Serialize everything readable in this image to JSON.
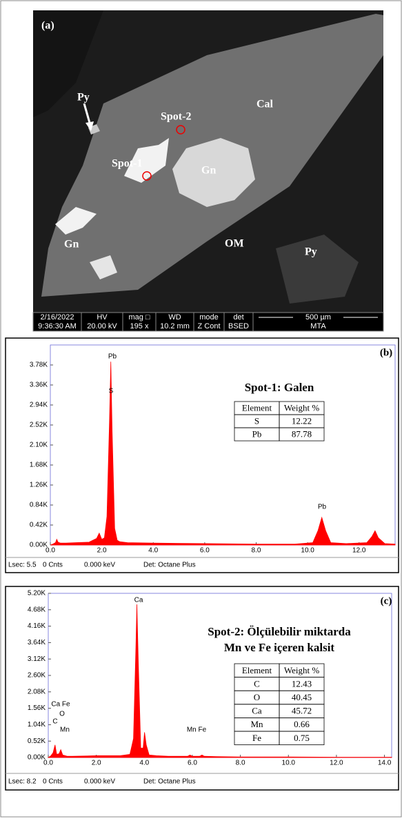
{
  "sem_image": {
    "label": "(a)",
    "annotations": [
      "Py",
      "Spot-2",
      "Cal",
      "Spot-1",
      "Gn",
      "Gn",
      "OM",
      "Py"
    ],
    "info_bar": {
      "headers": [
        "2/16/2022",
        "HV",
        "mag □",
        "WD",
        "mode",
        "det",
        "500 µm"
      ],
      "values": [
        "9:36:30 AM",
        "20.00 kV",
        "195 x",
        "10.2 mm",
        "Z Cont",
        "BSED",
        "MTA"
      ]
    }
  },
  "chart_data": [
    {
      "type": "area",
      "panel_label": "(b)",
      "title": [
        "Spot-1: Galen"
      ],
      "color": "#ff0000",
      "x": [
        0,
        0.1,
        0.2,
        0.25,
        0.3,
        0.4,
        0.6,
        1.0,
        1.5,
        1.8,
        1.9,
        2.0,
        2.1,
        2.2,
        2.3,
        2.35,
        2.4,
        2.5,
        2.6,
        2.7,
        3.0,
        4.0,
        6.0,
        8.0,
        9.5,
        10.2,
        10.4,
        10.55,
        10.7,
        10.9,
        11.5,
        12.3,
        12.5,
        12.62,
        12.75,
        13.0,
        13.4
      ],
      "values": [
        0,
        0.02,
        0.05,
        0.12,
        0.06,
        0.04,
        0.04,
        0.05,
        0.06,
        0.14,
        0.25,
        0.12,
        0.15,
        0.6,
        2.6,
        3.85,
        2.4,
        0.35,
        0.1,
        0.07,
        0.05,
        0.04,
        0.03,
        0.02,
        0.02,
        0.05,
        0.3,
        0.58,
        0.3,
        0.05,
        0.03,
        0.05,
        0.18,
        0.3,
        0.15,
        0.03,
        0.02
      ],
      "xlim": [
        0,
        13.4
      ],
      "ylim": [
        0,
        4.2
      ],
      "xticks": [
        {
          "value": 0,
          "label": "0.0"
        },
        {
          "value": 2,
          "label": "2.0"
        },
        {
          "value": 4,
          "label": "4.0"
        },
        {
          "value": 6,
          "label": "6.0"
        },
        {
          "value": 8,
          "label": "8.0"
        },
        {
          "value": 10,
          "label": "10.0"
        },
        {
          "value": 12,
          "label": "12.0"
        }
      ],
      "yticks": [
        {
          "value": 0,
          "label": "0.00K"
        },
        {
          "value": 0.42,
          "label": "0.42K"
        },
        {
          "value": 0.84,
          "label": "0.84K"
        },
        {
          "value": 1.26,
          "label": "1.26K"
        },
        {
          "value": 1.68,
          "label": "1.68K"
        },
        {
          "value": 2.1,
          "label": "2.10K"
        },
        {
          "value": 2.52,
          "label": "2.52K"
        },
        {
          "value": 2.94,
          "label": "2.94K"
        },
        {
          "value": 3.36,
          "label": "3.36K"
        },
        {
          "value": 3.78,
          "label": "3.78K"
        }
      ],
      "peak_labels": [
        "Pb",
        "S",
        "Pb"
      ],
      "table": {
        "header": [
          "Element",
          "Weight %"
        ],
        "rows": [
          [
            "S",
            "12.22"
          ],
          [
            "Pb",
            "87.78"
          ]
        ]
      },
      "footer": [
        "Lsec: 5.5",
        "0 Cnts",
        "0.000 keV",
        "Det: Octane Plus"
      ]
    },
    {
      "type": "area",
      "panel_label": "(c)",
      "title": [
        "Spot-2: Ölçülebilir miktarda",
        "Mn ve Fe içeren kalsit"
      ],
      "color": "#ff0000",
      "x": [
        0,
        0.1,
        0.2,
        0.28,
        0.35,
        0.45,
        0.52,
        0.6,
        0.8,
        1.0,
        2.0,
        3.0,
        3.4,
        3.55,
        3.65,
        3.69,
        3.75,
        3.85,
        3.95,
        4.01,
        4.08,
        4.2,
        4.5,
        5.0,
        5.8,
        5.9,
        6.0,
        6.3,
        6.4,
        6.5,
        7.0,
        8.0,
        10.0,
        12.0,
        14.3
      ],
      "values": [
        0,
        0.05,
        0.15,
        0.4,
        0.1,
        0.12,
        0.25,
        0.08,
        0.04,
        0.04,
        0.06,
        0.06,
        0.1,
        0.6,
        3.5,
        4.85,
        3.0,
        0.3,
        0.3,
        0.8,
        0.4,
        0.08,
        0.06,
        0.04,
        0.04,
        0.08,
        0.04,
        0.04,
        0.08,
        0.04,
        0.03,
        0.02,
        0.02,
        0.01,
        0.01
      ],
      "xlim": [
        0,
        14.3
      ],
      "ylim": [
        0,
        5.2
      ],
      "xticks": [
        {
          "value": 0,
          "label": "0.0"
        },
        {
          "value": 2,
          "label": "2.0"
        },
        {
          "value": 4,
          "label": "4.0"
        },
        {
          "value": 6,
          "label": "6.0"
        },
        {
          "value": 8,
          "label": "8.0"
        },
        {
          "value": 10,
          "label": "10.0"
        },
        {
          "value": 12,
          "label": "12.0"
        },
        {
          "value": 14,
          "label": "14.0"
        }
      ],
      "yticks": [
        {
          "value": 0,
          "label": "0.00K"
        },
        {
          "value": 0.52,
          "label": "0.52K"
        },
        {
          "value": 1.04,
          "label": "1.04K"
        },
        {
          "value": 1.56,
          "label": "1.56K"
        },
        {
          "value": 2.08,
          "label": "2.08K"
        },
        {
          "value": 2.6,
          "label": "2.60K"
        },
        {
          "value": 3.12,
          "label": "3.12K"
        },
        {
          "value": 3.64,
          "label": "3.64K"
        },
        {
          "value": 4.16,
          "label": "4.16K"
        },
        {
          "value": 4.68,
          "label": "4.68K"
        },
        {
          "value": 5.2,
          "label": "5.20K"
        }
      ],
      "peak_labels": [
        "Ca",
        "Ca Fe",
        "O",
        "C",
        "Mn",
        "Mn Fe"
      ],
      "table": {
        "header": [
          "Element",
          "Weight %"
        ],
        "rows": [
          [
            "C",
            "12.43"
          ],
          [
            "O",
            "40.45"
          ],
          [
            "Ca",
            "45.72"
          ],
          [
            "Mn",
            "0.66"
          ],
          [
            "Fe",
            "0.75"
          ]
        ]
      },
      "footer": [
        "Lsec: 8.2",
        "0 Cnts",
        "0.000 keV",
        "Det: Octane Plus"
      ]
    }
  ]
}
